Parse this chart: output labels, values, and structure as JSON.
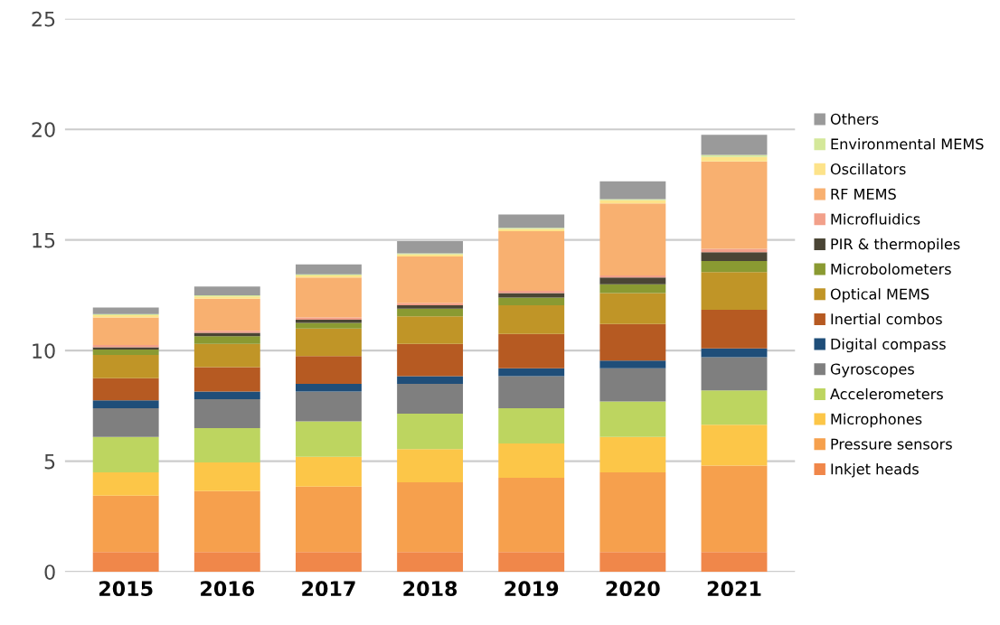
{
  "chart_data": {
    "type": "bar",
    "stacked": true,
    "categories": [
      "2015",
      "2016",
      "2017",
      "2018",
      "2019",
      "2020",
      "2021"
    ],
    "series": [
      {
        "name": "Inkjet heads",
        "color": "#f0874a",
        "values": [
          0.9,
          0.9,
          0.9,
          0.9,
          0.9,
          0.9,
          0.9
        ]
      },
      {
        "name": "Pressure sensors",
        "color": "#f6a04d",
        "values": [
          2.55,
          2.75,
          2.95,
          3.15,
          3.35,
          3.6,
          3.9
        ]
      },
      {
        "name": "Microphones",
        "color": "#fcc648",
        "values": [
          1.05,
          1.3,
          1.35,
          1.5,
          1.55,
          1.6,
          1.85
        ]
      },
      {
        "name": "Accelerometers",
        "color": "#bdd560",
        "values": [
          1.6,
          1.55,
          1.6,
          1.6,
          1.6,
          1.6,
          1.55
        ]
      },
      {
        "name": "Gyroscopes",
        "color": "#7f7f7f",
        "values": [
          1.3,
          1.3,
          1.35,
          1.35,
          1.45,
          1.5,
          1.5
        ]
      },
      {
        "name": "Digital compass",
        "color": "#1f4e79",
        "values": [
          0.35,
          0.35,
          0.35,
          0.35,
          0.35,
          0.35,
          0.4
        ]
      },
      {
        "name": "Inertial combos",
        "color": "#b65a22",
        "values": [
          1.0,
          1.1,
          1.25,
          1.45,
          1.55,
          1.65,
          1.75
        ]
      },
      {
        "name": "Optical MEMS",
        "color": "#c09527",
        "values": [
          1.05,
          1.05,
          1.25,
          1.25,
          1.3,
          1.4,
          1.7
        ]
      },
      {
        "name": "Microbolometers",
        "color": "#8a9a32",
        "values": [
          0.25,
          0.35,
          0.25,
          0.35,
          0.35,
          0.4,
          0.5
        ]
      },
      {
        "name": "PIR & thermopiles",
        "color": "#4a4535",
        "values": [
          0.1,
          0.15,
          0.15,
          0.15,
          0.2,
          0.3,
          0.4
        ]
      },
      {
        "name": "Microfluidics",
        "color": "#f2a08a",
        "values": [
          0.1,
          0.1,
          0.1,
          0.1,
          0.1,
          0.1,
          0.15
        ]
      },
      {
        "name": "RF MEMS",
        "color": "#f8b070",
        "values": [
          1.25,
          1.45,
          1.8,
          2.1,
          2.7,
          3.25,
          3.95
        ]
      },
      {
        "name": "Oscillators",
        "color": "#fde38a",
        "values": [
          0.1,
          0.1,
          0.1,
          0.1,
          0.1,
          0.15,
          0.2
        ]
      },
      {
        "name": "Environmental MEMS",
        "color": "#d4e89a",
        "values": [
          0.05,
          0.05,
          0.05,
          0.05,
          0.05,
          0.05,
          0.1
        ]
      },
      {
        "name": "Others",
        "color": "#9a9a9a",
        "values": [
          0.3,
          0.4,
          0.45,
          0.55,
          0.6,
          0.8,
          0.9
        ]
      }
    ],
    "ylim": [
      0,
      25
    ],
    "yticks": [
      0,
      5,
      10,
      15,
      20,
      25
    ],
    "grid": "y",
    "legend": "right"
  }
}
